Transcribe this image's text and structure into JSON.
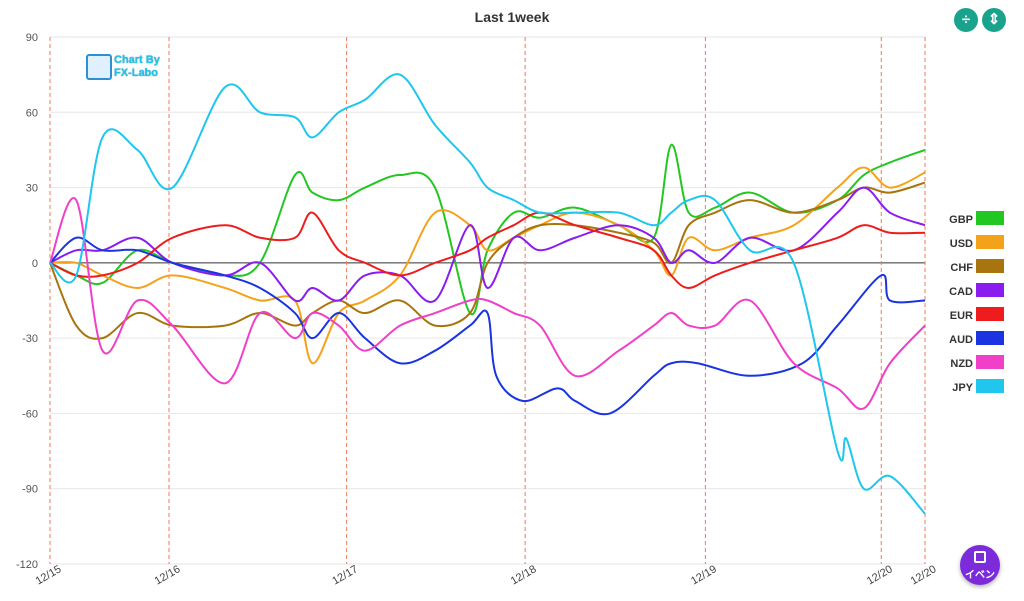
{
  "title": "Last 1week",
  "header_buttons": {
    "divide_icon": "divide-icon",
    "fit_icon": "fit-height-icon",
    "divide_symbol": "÷",
    "fit_symbol": "⇕"
  },
  "logo": {
    "line1": "Chart By",
    "line2": "FX-Labo"
  },
  "event_button": {
    "label": "イベン"
  },
  "chart_data": {
    "type": "line",
    "title": "Last 1week",
    "ylim": [
      -120,
      90
    ],
    "yticks": [
      90,
      60,
      30,
      0,
      -30,
      -60,
      -90,
      -120
    ],
    "x_ticks": [
      "12/15",
      "12/16",
      "12/17",
      "12/18",
      "12/19",
      "12/20",
      "12/20"
    ],
    "x_tick_pos": [
      0,
      1.36,
      3.39,
      5.43,
      7.49,
      9.5,
      10
    ],
    "grid": true,
    "legend_position": "right",
    "series": [
      {
        "name": "GBP",
        "color": "#22c722",
        "x": [
          0,
          0.3,
          0.6,
          1.0,
          1.4,
          2.0,
          2.4,
          2.8,
          3.0,
          3.3,
          3.6,
          4.0,
          4.4,
          4.8,
          5.0,
          5.3,
          5.6,
          6.0,
          6.5,
          6.9,
          7.1,
          7.3,
          7.6,
          8.0,
          8.5,
          9.0,
          9.3,
          9.6,
          10
        ],
        "y": [
          0,
          -5,
          -8,
          5,
          0,
          -5,
          0,
          35,
          28,
          25,
          30,
          35,
          30,
          -20,
          5,
          20,
          18,
          22,
          15,
          10,
          47,
          20,
          22,
          28,
          20,
          25,
          35,
          40,
          45
        ]
      },
      {
        "name": "USD",
        "color": "#f5a21b",
        "x": [
          0,
          0.3,
          0.6,
          1.0,
          1.4,
          2.0,
          2.4,
          2.8,
          3.0,
          3.3,
          3.6,
          4.0,
          4.4,
          4.8,
          5.0,
          5.3,
          5.6,
          6.0,
          6.5,
          6.9,
          7.1,
          7.3,
          7.6,
          8.0,
          8.5,
          9.0,
          9.3,
          9.6,
          10
        ],
        "y": [
          0,
          0,
          -5,
          -10,
          -5,
          -10,
          -15,
          -15,
          -40,
          -20,
          -15,
          -5,
          20,
          15,
          5,
          10,
          15,
          20,
          15,
          5,
          -5,
          10,
          5,
          10,
          15,
          30,
          38,
          30,
          36
        ]
      },
      {
        "name": "CHF",
        "color": "#a8740e",
        "x": [
          0,
          0.3,
          0.6,
          1.0,
          1.4,
          2.0,
          2.4,
          2.8,
          3.0,
          3.3,
          3.6,
          4.0,
          4.4,
          4.8,
          5.0,
          5.3,
          5.6,
          6.0,
          6.5,
          6.9,
          7.1,
          7.3,
          7.6,
          8.0,
          8.5,
          9.0,
          9.3,
          9.6,
          10
        ],
        "y": [
          0,
          -25,
          -30,
          -20,
          -25,
          -25,
          -20,
          -25,
          -20,
          -15,
          -20,
          -15,
          -25,
          -20,
          0,
          10,
          15,
          15,
          12,
          8,
          0,
          15,
          20,
          25,
          20,
          25,
          30,
          28,
          32
        ]
      },
      {
        "name": "CAD",
        "color": "#8a1cf0",
        "x": [
          0,
          0.3,
          0.6,
          1.0,
          1.4,
          2.0,
          2.4,
          2.8,
          3.0,
          3.3,
          3.6,
          4.0,
          4.4,
          4.8,
          5.0,
          5.3,
          5.6,
          6.0,
          6.5,
          6.9,
          7.1,
          7.3,
          7.6,
          8.0,
          8.5,
          9.0,
          9.3,
          9.6,
          10
        ],
        "y": [
          0,
          5,
          5,
          10,
          0,
          -5,
          0,
          -15,
          -10,
          -15,
          -5,
          -5,
          -15,
          15,
          -10,
          10,
          5,
          10,
          15,
          10,
          0,
          5,
          0,
          10,
          5,
          20,
          30,
          20,
          15
        ]
      },
      {
        "name": "EUR",
        "color": "#ee1c1c",
        "x": [
          0,
          0.3,
          0.6,
          1.0,
          1.4,
          2.0,
          2.4,
          2.8,
          3.0,
          3.3,
          3.6,
          4.0,
          4.4,
          4.8,
          5.0,
          5.3,
          5.6,
          6.0,
          6.5,
          6.9,
          7.1,
          7.3,
          7.6,
          8.0,
          8.5,
          9.0,
          9.3,
          9.6,
          10
        ],
        "y": [
          0,
          -5,
          -5,
          0,
          10,
          15,
          10,
          10,
          20,
          5,
          0,
          -5,
          0,
          5,
          10,
          15,
          20,
          15,
          10,
          5,
          -5,
          -10,
          -5,
          0,
          5,
          10,
          15,
          12,
          12
        ]
      },
      {
        "name": "AUD",
        "color": "#1934e0",
        "x": [
          0,
          0.3,
          0.6,
          1.0,
          1.4,
          2.0,
          2.4,
          2.8,
          3.0,
          3.3,
          3.6,
          4.0,
          4.4,
          4.8,
          5.0,
          5.1,
          5.4,
          5.8,
          6.0,
          6.4,
          6.9,
          7.1,
          7.4,
          8.0,
          8.6,
          9.0,
          9.5,
          9.6,
          10
        ],
        "y": [
          0,
          10,
          5,
          5,
          0,
          -5,
          -10,
          -20,
          -30,
          -20,
          -30,
          -40,
          -35,
          -25,
          -20,
          -45,
          -55,
          -50,
          -55,
          -60,
          -45,
          -40,
          -40,
          -45,
          -40,
          -25,
          -5,
          -15,
          -15
        ]
      },
      {
        "name": "NZD",
        "color": "#f03fc8",
        "x": [
          0,
          0.3,
          0.6,
          1.0,
          1.4,
          2.0,
          2.4,
          2.8,
          3.0,
          3.3,
          3.6,
          4.0,
          4.4,
          4.8,
          5.0,
          5.3,
          5.6,
          6.0,
          6.5,
          6.9,
          7.1,
          7.3,
          7.6,
          8.0,
          8.5,
          9.0,
          9.3,
          9.6,
          10
        ],
        "y": [
          0,
          25,
          -35,
          -15,
          -25,
          -48,
          -20,
          -30,
          -20,
          -25,
          -35,
          -25,
          -20,
          -15,
          -15,
          -20,
          -25,
          -45,
          -35,
          -25,
          -20,
          -25,
          -25,
          -15,
          -40,
          -50,
          -58,
          -40,
          -25
        ]
      },
      {
        "name": "JPY",
        "color": "#1fc6ee",
        "x": [
          0,
          0.3,
          0.6,
          1.0,
          1.4,
          2.0,
          2.4,
          2.8,
          3.0,
          3.3,
          3.6,
          4.0,
          4.4,
          4.8,
          5.0,
          5.3,
          5.6,
          6.0,
          6.5,
          6.9,
          7.1,
          7.3,
          7.6,
          8.0,
          8.5,
          9.0,
          9.1,
          9.3,
          9.6,
          10
        ],
        "y": [
          0,
          -5,
          50,
          45,
          30,
          70,
          60,
          58,
          50,
          60,
          65,
          75,
          55,
          40,
          30,
          25,
          20,
          20,
          20,
          15,
          20,
          25,
          25,
          5,
          0,
          -75,
          -70,
          -90,
          -85,
          -100
        ]
      }
    ]
  }
}
